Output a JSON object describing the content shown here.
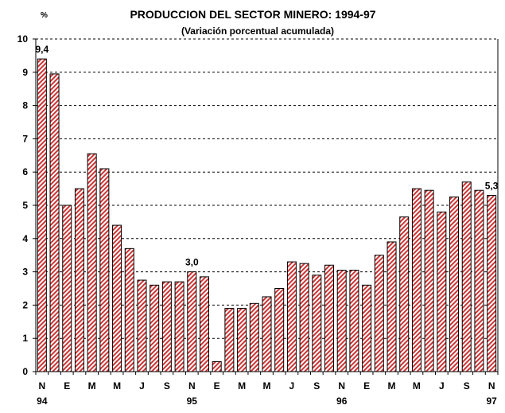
{
  "chart_data": {
    "type": "bar",
    "title": "PRODUCCION DEL SECTOR MINERO: 1994-97",
    "subtitle": "(Variación porcentual acumulada)",
    "ylabel": "%",
    "xlabel": "",
    "ylim": [
      0,
      10
    ],
    "yticks": [
      0,
      1,
      2,
      3,
      4,
      5,
      6,
      7,
      8,
      9,
      10
    ],
    "grid": true,
    "bar_color": "#cc3333",
    "values": [
      9.4,
      8.95,
      5.0,
      5.5,
      6.55,
      6.1,
      4.4,
      3.7,
      2.75,
      2.6,
      2.7,
      2.7,
      3.0,
      2.85,
      0.3,
      1.9,
      1.9,
      2.05,
      2.25,
      2.5,
      3.3,
      3.25,
      2.9,
      3.2,
      3.05,
      3.05,
      2.6,
      3.5,
      3.9,
      4.65,
      5.5,
      5.45,
      4.8,
      5.25,
      5.7,
      5.45,
      5.3
    ],
    "x_tick_labels": [
      {
        "index": 0,
        "month": "N",
        "year": "94"
      },
      {
        "index": 2,
        "month": "E",
        "year": ""
      },
      {
        "index": 4,
        "month": "M",
        "year": ""
      },
      {
        "index": 6,
        "month": "M",
        "year": ""
      },
      {
        "index": 8,
        "month": "J",
        "year": ""
      },
      {
        "index": 10,
        "month": "S",
        "year": ""
      },
      {
        "index": 12,
        "month": "N",
        "year": "95"
      },
      {
        "index": 14,
        "month": "E",
        "year": ""
      },
      {
        "index": 16,
        "month": "M",
        "year": ""
      },
      {
        "index": 18,
        "month": "M",
        "year": ""
      },
      {
        "index": 20,
        "month": "J",
        "year": ""
      },
      {
        "index": 22,
        "month": "S",
        "year": ""
      },
      {
        "index": 24,
        "month": "N",
        "year": "96"
      },
      {
        "index": 26,
        "month": "E",
        "year": ""
      },
      {
        "index": 28,
        "month": "M",
        "year": ""
      },
      {
        "index": 30,
        "month": "M",
        "year": ""
      },
      {
        "index": 32,
        "month": "J",
        "year": ""
      },
      {
        "index": 34,
        "month": "S",
        "year": ""
      },
      {
        "index": 36,
        "month": "N",
        "year": "97"
      }
    ],
    "annotations": [
      {
        "index": 0,
        "text": "9,4"
      },
      {
        "index": 12,
        "text": "3,0"
      },
      {
        "index": 36,
        "text": "5,3"
      }
    ]
  }
}
